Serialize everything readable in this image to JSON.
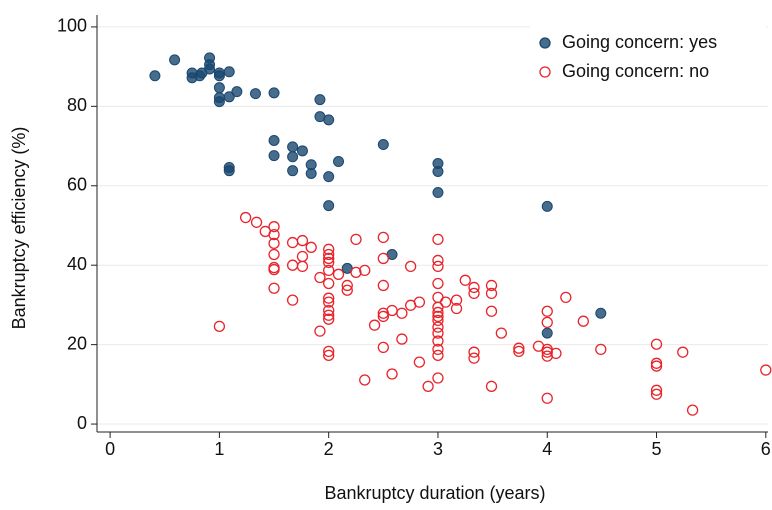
{
  "chart_data": {
    "type": "scatter",
    "xlabel": "Bankruptcy duration (years)",
    "ylabel": "Bankruptcy efficiency (%)",
    "xlim": [
      -0.12,
      6.02
    ],
    "ylim": [
      -2,
      103
    ],
    "xticks": [
      0,
      1,
      2,
      3,
      4,
      5,
      6
    ],
    "yticks": [
      0,
      20,
      40,
      60,
      80,
      100
    ],
    "grid": true,
    "legend": "upper right",
    "series": [
      {
        "name": "Going concern: yes",
        "color": "#1a476f",
        "marker": "filled",
        "x": [
          0.41,
          0.59,
          0.75,
          0.75,
          0.82,
          0.84,
          0.91,
          0.91,
          0.91,
          1.0,
          1.0,
          1.0,
          1.0,
          1.0,
          1.09,
          1.09,
          1.16,
          1.33,
          1.5,
          1.5,
          1.5,
          1.09,
          1.09,
          1.67,
          1.67,
          1.67,
          1.76,
          1.84,
          1.84,
          1.92,
          1.92,
          2.0,
          2.0,
          2.09,
          2.0,
          2.5,
          3.0,
          3.0,
          3.0,
          4.0,
          2.58,
          2.17,
          4.0,
          4.49
        ],
        "values": [
          87.7,
          91.7,
          88.4,
          87.2,
          87.7,
          88.4,
          92.2,
          90.5,
          89.4,
          88.4,
          87.7,
          84.7,
          82.2,
          81.2,
          88.7,
          82.4,
          83.7,
          83.2,
          83.4,
          71.4,
          67.6,
          64.6,
          63.8,
          69.8,
          67.3,
          63.8,
          68.8,
          65.3,
          63.1,
          81.7,
          77.4,
          76.6,
          62.3,
          66.1,
          55.0,
          70.4,
          65.6,
          63.6,
          58.3,
          54.8,
          42.7,
          39.2,
          22.9,
          27.9
        ]
      },
      {
        "name": "Going concern: no",
        "color": "#e8242b",
        "marker": "hollow",
        "x": [
          1.24,
          1.34,
          1.42,
          1.5,
          1.5,
          1.5,
          1.5,
          1.5,
          1.5,
          1.5,
          1.0,
          1.67,
          1.67,
          1.67,
          1.76,
          1.76,
          1.76,
          1.84,
          1.92,
          1.92,
          2.0,
          2.0,
          2.0,
          2.0,
          2.0,
          2.0,
          2.0,
          2.0,
          2.0,
          2.0,
          2.0,
          2.0,
          2.0,
          2.09,
          2.17,
          2.17,
          2.25,
          2.25,
          2.33,
          2.33,
          2.42,
          2.5,
          2.5,
          2.5,
          2.5,
          2.5,
          2.5,
          2.58,
          2.58,
          2.67,
          2.67,
          2.75,
          2.75,
          2.83,
          2.83,
          2.91,
          3.0,
          3.0,
          3.0,
          3.0,
          3.0,
          3.0,
          3.0,
          3.0,
          3.0,
          3.0,
          3.0,
          3.0,
          3.0,
          3.0,
          3.0,
          3.07,
          3.17,
          3.17,
          3.25,
          3.33,
          3.33,
          3.33,
          3.33,
          3.49,
          3.49,
          3.49,
          3.49,
          3.58,
          3.74,
          3.74,
          3.92,
          4.0,
          4.0,
          4.0,
          4.0,
          4.0,
          4.0,
          4.08,
          4.17,
          4.33,
          4.49,
          5.0,
          5.0,
          5.0,
          5.0,
          5.0,
          5.24,
          5.33,
          6.0
        ],
        "values": [
          52.0,
          50.8,
          48.5,
          49.7,
          47.7,
          45.5,
          42.7,
          39.4,
          38.9,
          34.2,
          24.6,
          45.7,
          40.0,
          31.2,
          46.2,
          42.2,
          39.7,
          44.5,
          36.9,
          23.4,
          44.0,
          42.7,
          41.7,
          40.7,
          38.7,
          35.4,
          31.7,
          30.7,
          28.6,
          27.4,
          26.4,
          18.3,
          17.3,
          37.7,
          34.9,
          33.7,
          46.5,
          38.2,
          38.7,
          11.1,
          24.9,
          47.0,
          41.7,
          34.9,
          27.9,
          27.1,
          19.3,
          28.6,
          12.6,
          27.9,
          21.4,
          39.7,
          29.9,
          30.7,
          15.6,
          9.5,
          46.5,
          41.2,
          39.7,
          35.4,
          31.9,
          29.4,
          28.1,
          27.1,
          26.1,
          24.4,
          22.9,
          20.9,
          18.8,
          17.3,
          11.6,
          30.7,
          31.2,
          29.1,
          36.2,
          34.4,
          32.9,
          18.1,
          16.6,
          34.9,
          32.9,
          28.4,
          9.5,
          22.9,
          19.1,
          18.3,
          19.6,
          28.4,
          25.6,
          18.8,
          18.1,
          17.1,
          6.5,
          17.8,
          31.9,
          25.9,
          18.8,
          20.1,
          15.3,
          14.6,
          8.5,
          7.5,
          18.1,
          3.5,
          13.6
        ]
      }
    ]
  }
}
